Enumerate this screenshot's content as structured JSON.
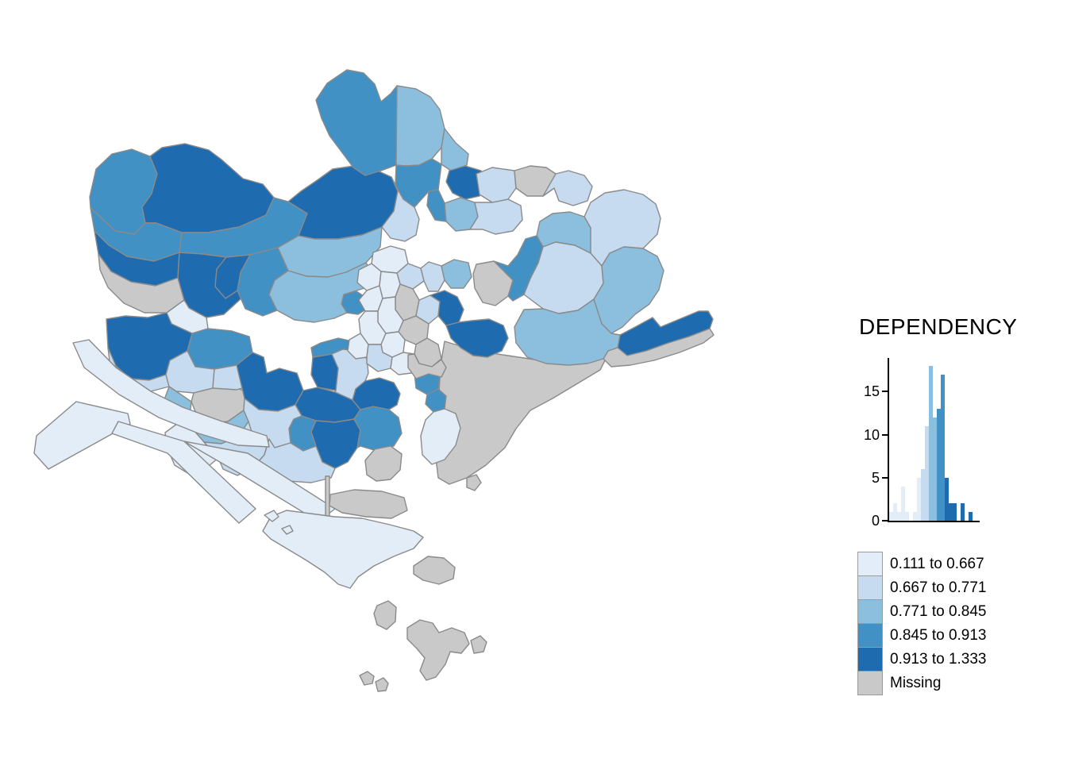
{
  "legend": {
    "title": "DEPENDENCY",
    "swatch_border": "#9B9B9B",
    "classes": [
      {
        "label": "0.111 to 0.667",
        "color": "#E3EDF8"
      },
      {
        "label": "0.667 to 0.771",
        "color": "#C6DBEF"
      },
      {
        "label": "0.771 to 0.845",
        "color": "#8BBFDD"
      },
      {
        "label": "0.845 to 0.913",
        "color": "#4191C5"
      },
      {
        "label": "0.913 to 1.333",
        "color": "#1F6BB0"
      },
      {
        "label": "Missing",
        "color": "#C9C9C9"
      }
    ],
    "histogram": {
      "type": "bar",
      "yticks": [
        0,
        5,
        10,
        15
      ],
      "ylim": [
        0,
        19
      ],
      "bars": [
        {
          "v": 1,
          "c": 0
        },
        {
          "v": 2,
          "c": 0
        },
        {
          "v": 1,
          "c": 0
        },
        {
          "v": 4,
          "c": 0
        },
        {
          "v": 1,
          "c": 0
        },
        {
          "v": 0,
          "c": 0
        },
        {
          "v": 1,
          "c": 0
        },
        {
          "v": 5,
          "c": 0
        },
        {
          "v": 6,
          "c": 1
        },
        {
          "v": 11,
          "c": 1
        },
        {
          "v": 18,
          "c": 2
        },
        {
          "v": 12,
          "c": 2
        },
        {
          "v": 13,
          "c": 3
        },
        {
          "v": 17,
          "c": 3
        },
        {
          "v": 5,
          "c": 4
        },
        {
          "v": 2,
          "c": 4
        },
        {
          "v": 2,
          "c": 4
        },
        {
          "v": 0,
          "c": 4
        },
        {
          "v": 2,
          "c": 4
        },
        {
          "v": 0,
          "c": 4
        },
        {
          "v": 1,
          "c": 4
        }
      ]
    }
  },
  "map": {
    "border_color": "#8A8A8A",
    "background": "#FFFFFF",
    "regions": [
      {
        "c": 3,
        "p": "113,248 121,213 141,194 166,188 189,197 198,219 191,244 179,261 183,281 169,295 145,291 125,272 114,262"
      },
      {
        "c": 4,
        "p": "189,197 204,186 233,181 263,189 279,201 306,225 331,232 345,249 335,271 301,286 262,293 229,293 197,281 183,281 179,261 191,244 198,219"
      },
      {
        "c": 3,
        "p": "114,262 125,272 145,291 169,295 183,281 197,281 229,293 226,318 194,329 160,323 137,309 119,291"
      },
      {
        "c": 3,
        "p": "229,293 262,293 301,286 335,271 345,249 363,254 387,269 376,297 350,312 315,321 285,324 255,320 226,318"
      },
      {
        "c": 4,
        "p": "119,291 137,309 160,323 194,329 226,318 224,350 196,360 165,355 140,342 124,320"
      },
      {
        "c": 5,
        "p": "124,320 140,342 165,355 196,360 224,350 232,378 210,394 182,394 156,382 136,362 126,340"
      },
      {
        "c": 4,
        "p": "226,318 255,320 285,324 315,321 322,348 306,374 282,396 260,400 238,388 232,378 224,350"
      },
      {
        "c": 0,
        "p": "232,378 238,388 260,400 262,414 242,420 216,408 210,394"
      },
      {
        "c": 4,
        "p": "134,402 158,398 186,400 210,394 216,408 242,420 236,442 214,454 209,472 188,479 164,477 146,461 136,438"
      },
      {
        "c": 1,
        "p": "136,438 146,461 164,477 188,479 209,472 213,487 186,494 158,489 140,472"
      },
      {
        "c": 4,
        "p": "363,254 379,241 401,226 419,213 446,209 471,213 493,223 501,241 496,266 481,286 456,296 426,301 396,301 376,297 387,269"
      },
      {
        "c": 2,
        "p": "350,312 376,297 396,301 426,301 456,296 481,286 479,311 461,331 436,343 413,349 386,348 363,341"
      },
      {
        "c": 3,
        "p": "315,321 350,312 363,341 346,353 339,371 349,391 331,398 309,389 299,366 303,343"
      },
      {
        "c": 4,
        "p": "285,324 315,321 303,343 299,366 284,376 271,361 273,339"
      },
      {
        "c": 3,
        "p": "433,371 449,367 461,375 462,389 451,396 437,394 430,383"
      },
      {
        "c": 2,
        "p": "363,341 386,348 413,349 436,343 461,331 471,346 459,363 433,371 430,383 437,394 421,401 396,406 371,403 349,391 339,371 346,353"
      },
      {
        "c": 3,
        "p": "437,88 458,92 472,106 480,128 492,118 500,108 499,208 480,215 460,221 445,211 430,191 415,171 405,149 398,126 412,105"
      },
      {
        "c": 2,
        "p": "500,108 524,112 542,122 554,138 560,162 556,186 544,200 528,208 512,209 499,208"
      },
      {
        "c": 2,
        "p": "560,162 574,180 590,194 588,208 568,215 556,207 556,186"
      },
      {
        "c": 3,
        "p": "499,208 512,209 528,208 544,200 556,207 552,239 540,241 522,261 508,251 498,233"
      },
      {
        "c": 4,
        "p": "566,215 586,209 606,215 612,231 604,247 586,251 570,243 562,229"
      },
      {
        "c": 3,
        "p": "540,241 552,239 560,256 562,279 548,277 538,259"
      },
      {
        "c": 2,
        "p": "560,256 580,249 598,255 602,273 592,289 574,291 562,279"
      },
      {
        "c": 1,
        "p": "602,273 598,255 620,255 640,251 656,259 658,277 646,291 624,295 608,289 592,289"
      },
      {
        "c": 1,
        "p": "600,219 620,211 648,215 650,237 640,251 620,255 604,245"
      },
      {
        "c": 5,
        "p": "648,215 668,209 688,211 700,219 698,237 684,247 664,247 650,237"
      },
      {
        "c": 1,
        "p": "700,219 716,215 736,221 746,235 740,253 722,259 704,253 698,237 684,247"
      },
      {
        "c": 1,
        "p": "493,223 501,241 496,266 481,286 492,300 510,304 524,296 528,276 522,261 508,251 498,233"
      },
      {
        "c": 2,
        "p": "700,305 684,311 676,297 680,279 696,269 718,267 736,273 744,287 744,319 724,309"
      },
      {
        "c": 1,
        "p": "744,287 736,273 744,255 762,243 786,239 810,245 826,257 832,275 828,295 810,313 786,311 768,319 758,335 744,319"
      },
      {
        "c": 3,
        "p": "622,329 640,335 652,321 662,301 676,297 684,311 678,331 668,351 660,371 646,379 640,373 646,353"
      },
      {
        "c": 5,
        "p": "600,333 622,329 646,353 640,373 624,385 608,381 598,363 596,345"
      },
      {
        "c": 1,
        "p": "534,354 530,338 540,330 556,335 560,353 552,367 540,367"
      },
      {
        "c": 2,
        "p": "556,335 572,327 590,331 594,349 584,363 568,363 560,353"
      },
      {
        "c": 1,
        "p": "684,311 700,305 724,309 744,319 758,335 760,357 748,377 728,391 704,395 684,389 668,377 660,371 668,351 678,331"
      },
      {
        "c": 2,
        "p": "758,335 768,319 786,311 810,313 828,323 836,341 830,365 818,383 800,396 784,412 770,420 758,408 750,390 748,377 760,357"
      },
      {
        "c": 5,
        "p": "560,430 600,442 640,448 680,454 718,456 748,452 768,442 756,466 726,484 696,502 668,517 650,540 636,564 612,586 588,602 566,610 552,602 549,577 550,547 552,512 554,477 556,454"
      },
      {
        "c": 4,
        "p": "781,422 800,412 822,400 832,412 856,402 880,392 892,392 898,402 894,414 868,424 842,432 814,442 790,448 778,438"
      },
      {
        "c": 5,
        "p": "778,438 790,448 814,442 842,432 868,424 894,414 899,422 886,432 856,444 824,454 794,460 770,462 760,452 766,442"
      },
      {
        "c": 2,
        "p": "660,390 684,389 704,395 728,391 748,377 758,408 770,420 781,422 778,438 766,442 760,452 740,458 716,460 688,458 664,450 650,432 648,412"
      },
      {
        "c": 5,
        "p": "588,602 600,598 606,608 598,618 588,614"
      },
      {
        "c": 3,
        "p": "242,420 262,414 292,417 314,424 318,444 298,460 270,465 246,462 236,442"
      },
      {
        "c": 1,
        "p": "213,487 209,472 214,454 236,442 246,462 270,465 268,489 244,495 222,493"
      },
      {
        "c": 5,
        "p": "244,495 268,489 293,487 309,493 307,517 287,531 263,533 247,521 241,506"
      },
      {
        "c": 2,
        "p": "213,487 222,493 241,506 239,524 223,534 209,526 206,506"
      },
      {
        "c": 2,
        "p": "247,521 263,533 287,531 307,517 313,531 301,549 279,559 257,557 243,541"
      },
      {
        "c": 1,
        "p": "270,465 298,460 318,444 332,450 336,470 322,484 298,491 268,489"
      },
      {
        "c": 0,
        "p": "223,534 239,524 247,521 243,541 257,557 275,577 258,591 238,597 220,586 210,563 208,545"
      },
      {
        "c": 1,
        "p": "257,557 279,559 301,549 313,531 331,536 339,553 333,573 319,589 299,599 281,591 275,577"
      },
      {
        "c": 4,
        "p": "318,444 332,450 336,470 352,464 374,470 382,492 372,510 350,518 326,516 308,502 298,460"
      },
      {
        "c": 4,
        "p": "394,450 418,446 426,464 423,492 400,488 392,472"
      },
      {
        "c": 3,
        "p": "404,432 426,426 444,430 450,442 432,440 418,446 394,450 392,438"
      },
      {
        "c": 1,
        "p": "423,492 426,464 418,446 432,440 450,442 462,452 464,470 460,480 448,490 444,504 422,494"
      },
      {
        "c": 4,
        "p": "372,510 382,492 400,488 422,494 444,504 454,516 446,528 422,532 398,530 380,524"
      },
      {
        "c": 3,
        "p": "380,524 398,530 392,544 398,562 382,568 366,558 364,540 370,528"
      },
      {
        "c": 1,
        "p": "308,502 326,516 350,518 372,510 380,524 370,528 364,540 366,558 346,564 322,560 313,531 307,517"
      },
      {
        "c": 4,
        "p": "398,530 422,532 446,528 454,542 450,564 438,582 422,590 406,582 398,562 392,544"
      },
      {
        "c": 1,
        "p": "319,589 333,573 339,553 346,564 366,558 382,568 398,562 406,582 422,590 417,602 392,608 362,606 337,600"
      },
      {
        "c": 3,
        "p": "446,528 454,516 470,512 490,516 502,526 506,546 496,562 474,568 454,562 450,564 454,542"
      },
      {
        "c": 4,
        "p": "470,512 454,516 444,504 448,490 460,480 478,476 496,482 504,496 500,510 490,516"
      },
      {
        "c": 0,
        "p": "470,318 492,310 510,315 514,332 500,344 480,342 468,332"
      },
      {
        "c": 0,
        "p": "468,332 480,342 478,360 462,366 450,356 452,340"
      },
      {
        "c": 1,
        "p": "500,344 514,332 530,338 534,354 520,364 504,358"
      },
      {
        "c": 0,
        "p": "478,360 480,342 500,344 504,358 498,374 482,376"
      },
      {
        "c": 0,
        "p": "462,366 478,360 482,376 476,392 460,392 452,378"
      },
      {
        "c": 5,
        "p": "504,358 520,364 528,378 524,398 508,404 498,390 498,374"
      },
      {
        "c": 0,
        "p": "482,376 498,374 498,390 508,404 502,418 486,420 476,406 476,392"
      },
      {
        "c": 0,
        "p": "460,392 476,392 476,406 486,420 480,434 464,434 454,420 452,402"
      },
      {
        "c": 1,
        "p": "524,398 528,378 542,372 554,380 552,398 540,408"
      },
      {
        "c": 4,
        "p": "542,372 560,366 576,374 584,390 578,406 562,410 552,398 554,380"
      },
      {
        "c": 5,
        "p": "508,404 524,398 540,408 538,426 524,434 510,428 502,418"
      },
      {
        "c": 0,
        "p": "486,420 502,418 510,428 508,444 494,450 482,444 480,434"
      },
      {
        "c": 0,
        "p": "454,420 464,434 462,450 448,452 438,442 440,428"
      },
      {
        "c": 1,
        "p": "464,434 480,434 482,444 494,450 492,464 476,468 462,458 462,450"
      },
      {
        "c": 5,
        "p": "524,434 538,426 552,434 556,452 544,462 528,458 522,446"
      },
      {
        "c": 0,
        "p": "494,450 508,444 522,446 528,458 518,470 502,472 492,464"
      },
      {
        "c": 4,
        "p": "562,410 578,406 594,404 616,402 634,410 640,426 632,442 614,450 596,448 580,438 568,426"
      },
      {
        "c": 3,
        "p": "522,470 540,466 554,474 552,490 538,497 524,489"
      },
      {
        "c": 3,
        "p": "538,497 552,490 562,499 560,515 546,519 536,509"
      },
      {
        "c": 0,
        "p": "546,519 560,515 574,521 580,539 574,561 560,579 544,585 532,573 530,549 536,529"
      },
      {
        "c": 5,
        "p": "514,447 522,446 528,458 544,462 556,453 562,463 556,475 540,471 524,477 514,463"
      },
      {
        "c": 5,
        "p": "460,580 472,566 492,562 506,572 504,592 492,604 474,606 462,598"
      },
      {
        "c": 0,
        "p": "92,432 112,428 146,463 190,493 230,513 280,531 336,549 339,563 300,561 250,546 200,526 150,497 106,463"
      },
      {
        "c": 0,
        "p": "46,549 96,506 161,521 164,534 61,591 43,571"
      },
      {
        "c": 0,
        "p": "149,531 232,556 322,641 301,659 211,571 141,546"
      },
      {
        "c": 0,
        "p": "232,556 312,571 422,641 401,657 301,596"
      },
      {
        "c": 5,
        "p": "416,623 446,617 481,619 509,627 513,643 493,653 461,651 431,646 415,637"
      },
      {
        "c": 5,
        "p": "410,600 415,600 415,652 410,652"
      },
      {
        "c": 0,
        "p": "331,669 341,651 361,643 391,647 421,651 456,653 491,661 521,669 533,677 521,691 496,701 471,713 451,727 441,741 426,736 409,721 386,706 361,691 341,679"
      },
      {
        "c": 0,
        "p": "333,649 345,643 351,651 343,657"
      },
      {
        "c": 0,
        "p": "355,666 365,662 369,669 361,673"
      },
      {
        "c": 5,
        "p": "521,713 539,701 559,703 573,715 571,729 553,736 533,731 521,723"
      },
      {
        "c": 5,
        "p": "475,763 489,757 499,765 498,783 487,793 475,787 471,773"
      },
      {
        "c": 5,
        "p": "513,791 529,781 545,785 553,797 569,791 585,797 591,811 581,823 567,821 561,837 549,853 537,857 529,845 535,829 525,817 513,805"
      },
      {
        "c": 5,
        "p": "593,807 605,801 613,809 609,821 597,823"
      },
      {
        "c": 5,
        "p": "453,851 463,846 471,852 469,861 459,863"
      },
      {
        "c": 5,
        "p": "473,859 483,854 489,861 486,870 476,871"
      }
    ]
  }
}
